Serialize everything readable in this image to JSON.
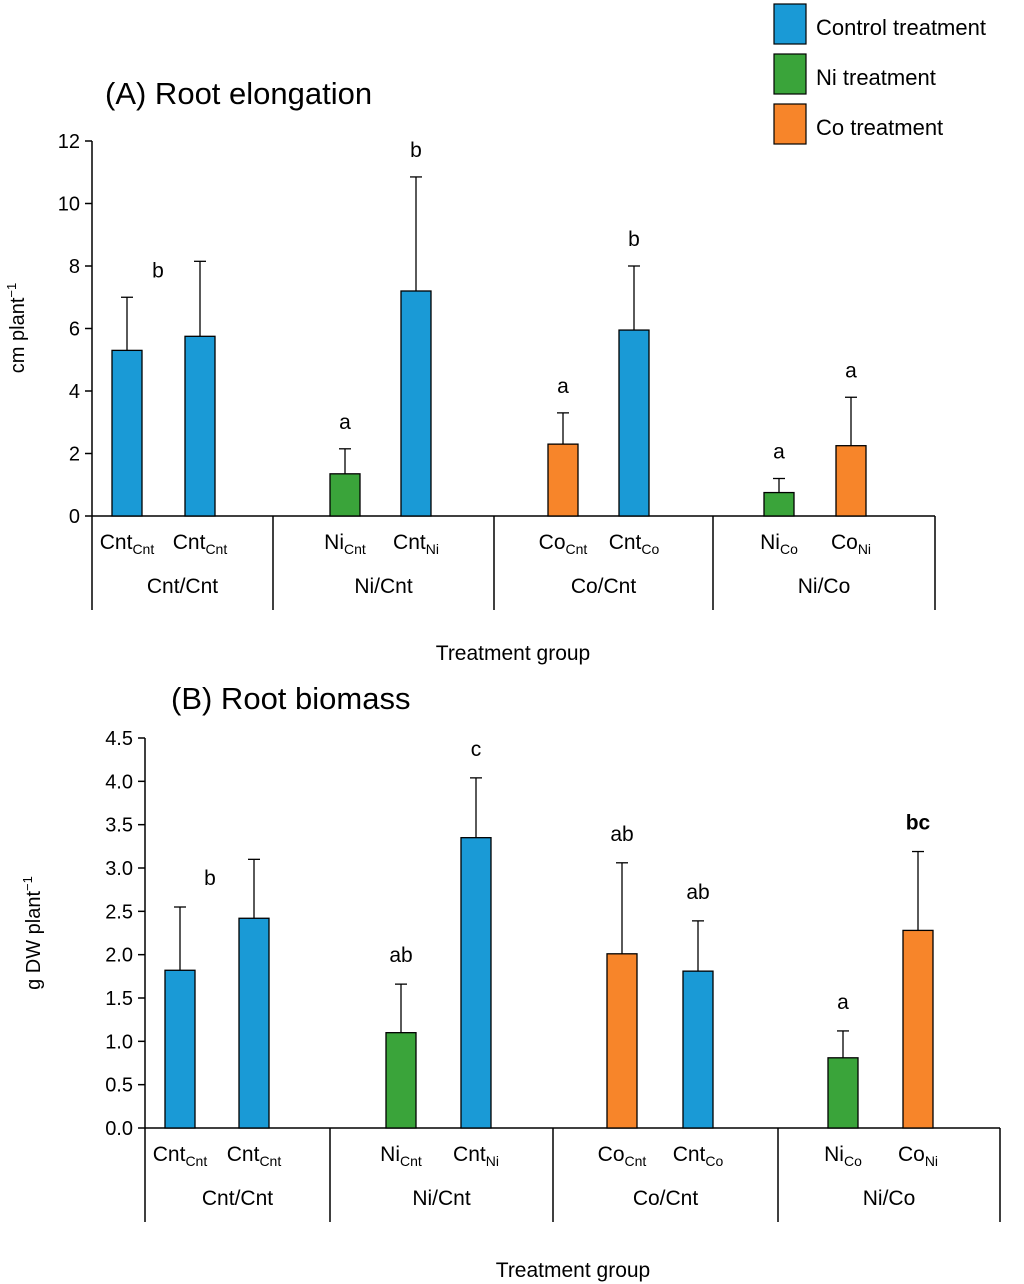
{
  "legend": {
    "items": [
      {
        "label": "Control treatment",
        "color": "#1a9ad6"
      },
      {
        "label": "Ni treatment",
        "color": "#3aa43a"
      },
      {
        "label": "Co treatment",
        "color": "#f7852a"
      }
    ]
  },
  "colors": {
    "control": "#1a9ad6",
    "ni": "#3aa43a",
    "co": "#f7852a",
    "axis": "#000000"
  },
  "chart_data": [
    {
      "type": "bar",
      "title": "(A) Root elongation",
      "ylabel": "cm plant",
      "ylabel_sup": "−1",
      "xlabel": "Treatment group",
      "ylim": [
        0,
        12
      ],
      "yticks": [
        "0",
        "2",
        "4",
        "6",
        "8",
        "10",
        "12"
      ],
      "grid": false,
      "groups": [
        "Cnt/Cnt",
        "Ni/Cnt",
        "Co/Cnt",
        "Ni/Co"
      ],
      "bars": [
        {
          "group": "Cnt/Cnt",
          "base": "Cnt",
          "sub": "Cnt",
          "treatment": "control",
          "value": 5.3,
          "error": 1.7,
          "letter": "b"
        },
        {
          "group": "Cnt/Cnt",
          "base": "Cnt",
          "sub": "Cnt",
          "treatment": "control",
          "value": 5.75,
          "error": 2.4,
          "letter": ""
        },
        {
          "group": "Ni/Cnt",
          "base": "Ni",
          "sub": "Cnt",
          "treatment": "ni",
          "value": 1.35,
          "error": 0.8,
          "letter": "a"
        },
        {
          "group": "Ni/Cnt",
          "base": "Cnt",
          "sub": "Ni",
          "treatment": "control",
          "value": 7.2,
          "error": 3.65,
          "letter": "b"
        },
        {
          "group": "Co/Cnt",
          "base": "Co",
          "sub": "Cnt",
          "treatment": "co",
          "value": 2.3,
          "error": 1.0,
          "letter": "a"
        },
        {
          "group": "Co/Cnt",
          "base": "Cnt",
          "sub": "Co",
          "treatment": "control",
          "value": 5.95,
          "error": 2.05,
          "letter": "b"
        },
        {
          "group": "Ni/Co",
          "base": "Ni",
          "sub": "Co",
          "treatment": "ni",
          "value": 0.75,
          "error": 0.45,
          "letter": "a"
        },
        {
          "group": "Ni/Co",
          "base": "Co",
          "sub": "Ni",
          "treatment": "co",
          "value": 2.25,
          "error": 1.55,
          "letter": "a"
        }
      ]
    },
    {
      "type": "bar",
      "title": "(B) Root biomass",
      "ylabel": "g DW plant",
      "ylabel_sup": "−1",
      "xlabel": "Treatment group",
      "ylim": [
        0,
        4.5
      ],
      "yticks": [
        "0.0",
        "0.5",
        "1.0",
        "1.5",
        "2.0",
        "2.5",
        "3.0",
        "3.5",
        "4.0",
        "4.5"
      ],
      "grid": false,
      "groups": [
        "Cnt/Cnt",
        "Ni/Cnt",
        "Co/Cnt",
        "Ni/Co"
      ],
      "bars": [
        {
          "group": "Cnt/Cnt",
          "base": "Cnt",
          "sub": "Cnt",
          "treatment": "control",
          "value": 1.82,
          "error": 0.73,
          "letter": "b"
        },
        {
          "group": "Cnt/Cnt",
          "base": "Cnt",
          "sub": "Cnt",
          "treatment": "control",
          "value": 2.42,
          "error": 0.68,
          "letter": ""
        },
        {
          "group": "Ni/Cnt",
          "base": "Ni",
          "sub": "Cnt",
          "treatment": "ni",
          "value": 1.1,
          "error": 0.56,
          "letter": "ab"
        },
        {
          "group": "Ni/Cnt",
          "base": "Cnt",
          "sub": "Ni",
          "treatment": "control",
          "value": 3.35,
          "error": 0.69,
          "letter": "c"
        },
        {
          "group": "Co/Cnt",
          "base": "Co",
          "sub": "Cnt",
          "treatment": "co",
          "value": 2.01,
          "error": 1.05,
          "letter": "ab"
        },
        {
          "group": "Co/Cnt",
          "base": "Cnt",
          "sub": "Co",
          "treatment": "control",
          "value": 1.81,
          "error": 0.58,
          "letter": "ab"
        },
        {
          "group": "Ni/Co",
          "base": "Ni",
          "sub": "Co",
          "treatment": "ni",
          "value": 0.81,
          "error": 0.31,
          "letter": "a"
        },
        {
          "group": "Ni/Co",
          "base": "Co",
          "sub": "Ni",
          "treatment": "co",
          "value": 2.28,
          "error": 0.91,
          "letter": "bc"
        }
      ]
    }
  ]
}
